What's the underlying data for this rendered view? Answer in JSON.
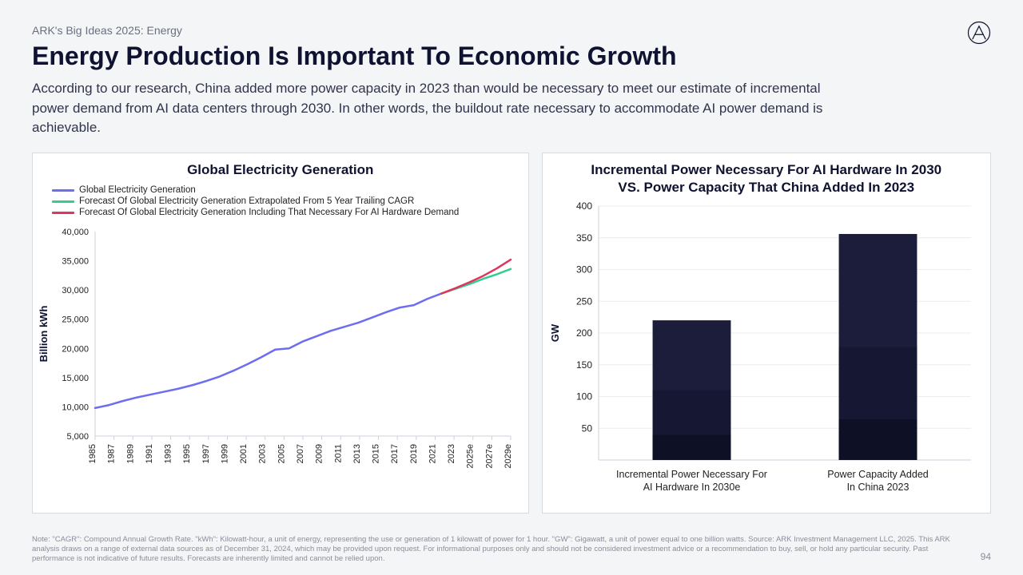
{
  "kicker": "ARK's Big Ideas 2025: Energy",
  "title": "Energy Production Is Important To Economic Growth",
  "subtitle": "According to our research, China added more power capacity in 2023 than would be necessary to meet our estimate of incremental power demand from AI data centers through 2030. In other words, the buildout rate necessary to accommodate AI power demand is achievable.",
  "page_number": "94",
  "footnote": "Note: \"CAGR\": Compound Annual Growth Rate. \"kWh\": Kilowatt-hour, a unit of energy, representing the use or generation of 1 kilowatt of power for 1 hour. \"GW\": Gigawatt, a unit of power equal to one billion watts. Source: ARK Investment Management LLC, 2025. This ARK analysis draws on a range of external data sources as of December 31, 2024, which may be provided upon request. For informational purposes only and should not be considered investment advice or a recommendation to buy, sell, or hold any particular security. Past performance is not indicative of future results. Forecasts are inherently limited and cannot be relied upon.",
  "line_chart": {
    "type": "line",
    "title": "Global Electricity Generation",
    "ylabel": "Billion kWh",
    "y_min": 5000,
    "y_max": 40000,
    "y_step": 5000,
    "x_labels": [
      "1985",
      "1987",
      "1989",
      "1991",
      "1993",
      "1995",
      "1997",
      "1999",
      "2001",
      "2003",
      "2005",
      "2007",
      "2009",
      "2011",
      "2013",
      "2015",
      "2017",
      "2019",
      "2021",
      "2023",
      "2025e",
      "2027e",
      "2029e"
    ],
    "legend": [
      {
        "label": "Global Electricity Generation",
        "color": "#6d6df2"
      },
      {
        "label": "Forecast Of Global Electricity Generation Extrapolated From 5 Year Trailing CAGR",
        "color": "#2fcf8f"
      },
      {
        "label": "Forecast Of Global Electricity Generation Including That Necessary For AI Hardware Demand",
        "color": "#e0355f"
      }
    ],
    "series": {
      "actual": {
        "color": "#6d6df2",
        "stroke_width": 2.5,
        "points": [
          [
            0,
            9800
          ],
          [
            1,
            10300
          ],
          [
            2,
            11000
          ],
          [
            3,
            11600
          ],
          [
            4,
            12100
          ],
          [
            5,
            12600
          ],
          [
            6,
            13100
          ],
          [
            7,
            13700
          ],
          [
            8,
            14400
          ],
          [
            9,
            15200
          ],
          [
            10,
            16200
          ],
          [
            11,
            17300
          ],
          [
            12,
            18500
          ],
          [
            13,
            19800
          ],
          [
            14,
            20000
          ],
          [
            15,
            21200
          ],
          [
            16,
            22100
          ],
          [
            17,
            23000
          ],
          [
            18,
            23700
          ],
          [
            19,
            24400
          ],
          [
            20,
            25300
          ],
          [
            21,
            26200
          ],
          [
            22,
            27000
          ],
          [
            23,
            27400
          ],
          [
            24,
            28500
          ],
          [
            25,
            29400
          ]
        ]
      },
      "forecast_cagr": {
        "color": "#2fcf8f",
        "stroke_width": 2.5,
        "points": [
          [
            25,
            29400
          ],
          [
            26,
            30200
          ],
          [
            27,
            31000
          ],
          [
            28,
            31900
          ],
          [
            29,
            32700
          ],
          [
            30,
            33600
          ]
        ]
      },
      "forecast_ai": {
        "color": "#e0355f",
        "stroke_width": 2.5,
        "points": [
          [
            25,
            29400
          ],
          [
            26,
            30300
          ],
          [
            27,
            31300
          ],
          [
            28,
            32400
          ],
          [
            29,
            33700
          ],
          [
            30,
            35200
          ]
        ]
      }
    },
    "x_count": 31,
    "background_color": "#ffffff",
    "axis_color": "#cfd2dc",
    "tick_font_size": 11,
    "label_font_size": 13
  },
  "bar_chart": {
    "type": "bar",
    "title_line1": "Incremental Power Necessary For AI Hardware In 2030",
    "title_line2": "VS. Power Capacity That China Added In 2023",
    "ylabel": "GW",
    "y_min": 0,
    "y_max": 400,
    "y_step": 50,
    "categories": [
      "Incremental Power Necessary For AI Hardware In 2030e",
      "Power Capacity Added In China 2023"
    ],
    "values": [
      220,
      356
    ],
    "bar_color": "#1b1d3a",
    "bar_width": 0.42,
    "background_color": "#ffffff",
    "axis_color": "#cfd2dc",
    "grid_color": "#ececf1",
    "tick_font_size": 12,
    "label_font_size": 13
  },
  "colors": {
    "page_bg": "#f4f5f7",
    "panel_border": "#d8dae2",
    "text_primary": "#0f1230",
    "text_muted": "#8a8d9c"
  }
}
